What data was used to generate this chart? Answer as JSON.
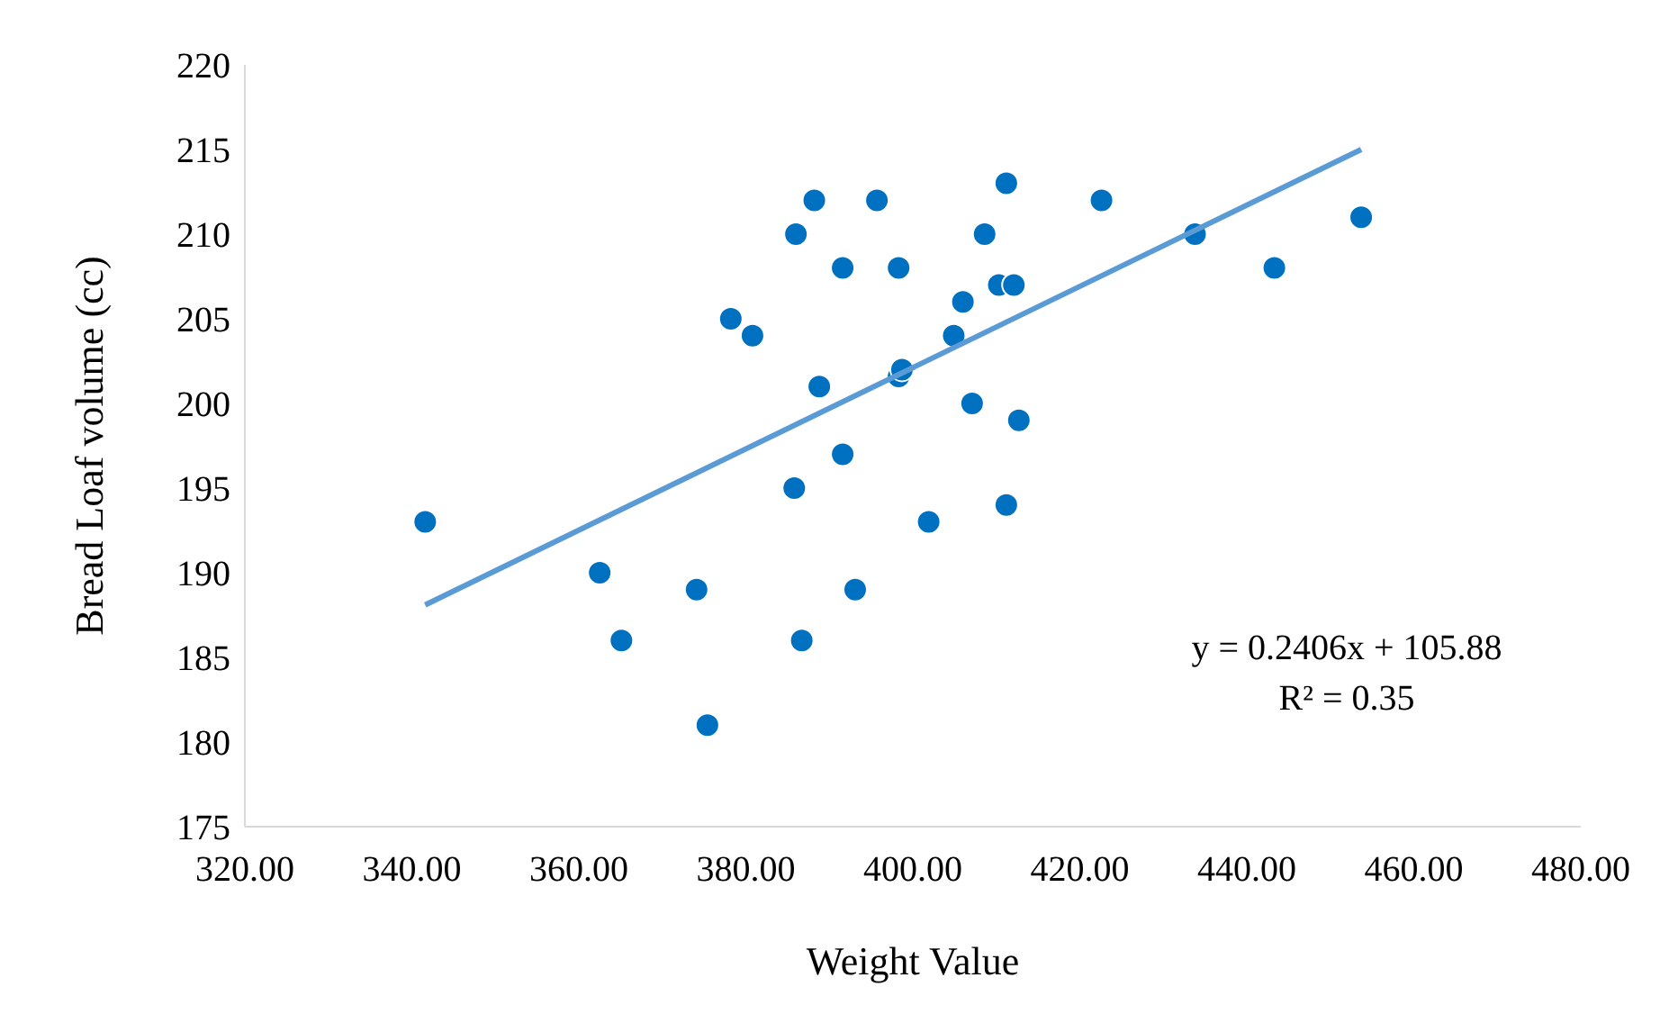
{
  "chart_data": {
    "type": "scatter",
    "xlabel": "Weight Value",
    "ylabel": "Bread Loaf volume (cc)",
    "xlim": [
      320,
      480
    ],
    "xticks": [
      {
        "value": 320,
        "label": "320.00"
      },
      {
        "value": 340,
        "label": "340.00"
      },
      {
        "value": 360,
        "label": "360.00"
      },
      {
        "value": 380,
        "label": "380.00"
      },
      {
        "value": 400,
        "label": "400.00"
      },
      {
        "value": 420,
        "label": "420.00"
      },
      {
        "value": 440,
        "label": "440.00"
      },
      {
        "value": 460,
        "label": "460.00"
      },
      {
        "value": 480,
        "label": "480.00"
      }
    ],
    "ylim": [
      175,
      220
    ],
    "yticks": [
      175,
      180,
      185,
      190,
      195,
      200,
      205,
      210,
      215,
      220
    ],
    "grid": false,
    "series": [
      {
        "color": "#0070c0",
        "marker": "circle",
        "x": [
          341.6,
          362.5,
          365.1,
          374.1,
          375.4,
          378.2,
          380.8,
          386.0,
          385.8,
          386.7,
          388.2,
          388.8,
          391.6,
          391.6,
          393.1,
          395.7,
          398.3,
          398.3,
          398.7,
          401.9,
          404.9,
          406.0,
          407.1,
          408.6,
          410.3,
          412.1,
          411.2,
          411.2,
          412.7,
          422.6,
          433.8,
          443.3,
          453.7
        ],
        "values": [
          193,
          190,
          186,
          189,
          181,
          205,
          204,
          210,
          195,
          186,
          212,
          201,
          208,
          197,
          189,
          212,
          208,
          201.6,
          202,
          193,
          204,
          206,
          200,
          210,
          207,
          207,
          213,
          194,
          199,
          212,
          210,
          208,
          211
        ]
      },
      {
        "type": "line",
        "color": "#5b9bd5",
        "line_style": "solid",
        "marker": "none",
        "x": [
          341.6,
          453.7
        ],
        "values": [
          188.1,
          215.0
        ]
      }
    ],
    "annotations": [
      "y = 0.2406x + 105.88",
      "R² = 0.35"
    ]
  }
}
